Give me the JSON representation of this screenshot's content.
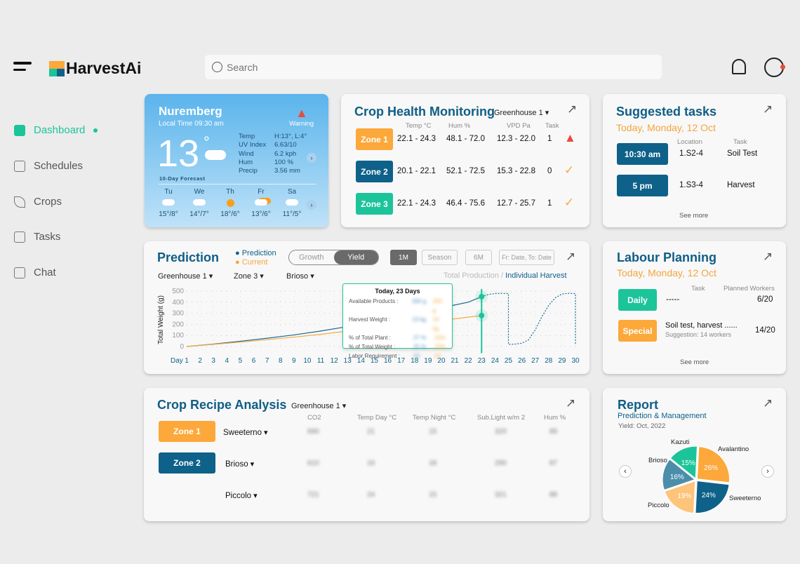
{
  "app": {
    "name": "HarvestAi",
    "search_placeholder": "Search"
  },
  "sidebar": {
    "items": [
      {
        "label": "Dashboard",
        "active": true
      },
      {
        "label": "Schedules"
      },
      {
        "label": "Crops"
      },
      {
        "label": "Tasks"
      },
      {
        "label": "Chat"
      }
    ]
  },
  "weather": {
    "city": "Nuremberg",
    "local_time": "Local Time 09:30 am",
    "warning": "Warning",
    "temp": "13",
    "deg": "°",
    "stats": [
      [
        "Temp",
        "H:13°, L:4°"
      ],
      [
        "UV Index",
        "6.63/10"
      ],
      [
        "Wind",
        "6.2 kph"
      ],
      [
        "Hum",
        "100 %"
      ],
      [
        "Precip",
        "3.56 mm"
      ]
    ],
    "forecast_label": "10-Day Forecast",
    "days": [
      {
        "d": "Tu",
        "t": "15°/8°",
        "icon": "cloud"
      },
      {
        "d": "We",
        "t": "14°/7°",
        "icon": "cloud"
      },
      {
        "d": "Th",
        "t": "18°/6°",
        "icon": "sun"
      },
      {
        "d": "Fr",
        "t": "13°/6°",
        "icon": "partly-cloudy"
      },
      {
        "d": "Sa",
        "t": "11°/5°",
        "icon": "rain"
      }
    ]
  },
  "crop_health": {
    "title": "Crop Health Monitoring",
    "greenhouse": "Greenhouse 1",
    "headers": [
      "Temp °C",
      "Hum %",
      "VPD Pa",
      "Task"
    ],
    "rows": [
      {
        "zone": "Zone 1",
        "temp": "22.1 - 24.3",
        "hum": "48.1 - 72.0",
        "vpd": "12.3 - 22.0",
        "task": "1",
        "status": "warning"
      },
      {
        "zone": "Zone 2",
        "temp": "20.1 - 22.1",
        "hum": "52.1 - 72.5",
        "vpd": "15.3 - 22.8",
        "task": "0",
        "status": "ok"
      },
      {
        "zone": "Zone 3",
        "temp": "22.1 - 24.3",
        "hum": "46.4 - 75.6",
        "vpd": "12.7 - 25.7",
        "task": "1",
        "status": "ok"
      }
    ]
  },
  "suggested": {
    "title": "Suggested tasks",
    "date": "Today, Monday, 12 Oct",
    "headers": [
      "Location",
      "Task"
    ],
    "rows": [
      {
        "time": "10:30 am",
        "loc": "1.S2-4",
        "task": "Soil Test"
      },
      {
        "time": "5 pm",
        "loc": "1.S3-4",
        "task": "Harvest"
      }
    ],
    "see_more": "See more"
  },
  "prediction": {
    "title": "Prediction",
    "legend": [
      "Prediction",
      "Current"
    ],
    "toggle": [
      "Growth",
      "Yield"
    ],
    "ranges": [
      "1M",
      "Season",
      "6M",
      "Fr: Date, To: Date"
    ],
    "filters": [
      "Greenhouse 1",
      "Zone 3",
      "Brioso"
    ],
    "view": [
      "Total Production",
      "/",
      "Individual Harvest"
    ],
    "tooltip": {
      "title": "Today, 23 Days",
      "rows": [
        [
          "Available Products :",
          "300 g",
          "200 g"
        ],
        [
          "Harvest Weight :",
          "13 kg",
          "10 kg"
        ],
        [
          "% of Total Plant :",
          "27 %",
          "22%"
        ],
        [
          "% of Total Weight :",
          "25 %",
          "20%"
        ],
        [
          "Labor Requirement :",
          "10",
          "10"
        ]
      ]
    }
  },
  "chart_data": {
    "type": "line",
    "ylabel": "Total Weight (g)",
    "xlabel": "Day",
    "ylim": [
      0,
      500
    ],
    "yticks": [
      "0",
      "100",
      "200",
      "300",
      "400",
      "500"
    ],
    "x": [
      1,
      2,
      3,
      4,
      5,
      6,
      7,
      8,
      9,
      10,
      11,
      12,
      13,
      14,
      15,
      16,
      17,
      18,
      19,
      20,
      21,
      22,
      23,
      24,
      25,
      26,
      27,
      28,
      29,
      30
    ],
    "series": [
      {
        "name": "Prediction",
        "color": "#1b6b93",
        "x": [
          1,
          3,
          5,
          7,
          9,
          11,
          13,
          15,
          17,
          19,
          21,
          22,
          23
        ],
        "values": [
          0,
          22,
          48,
          75,
          105,
          140,
          180,
          225,
          275,
          325,
          375,
          400,
          450
        ]
      },
      {
        "name": "Prediction (forecast)",
        "color": "#1b6b93",
        "dashed": true,
        "x": [
          23,
          23.5,
          24,
          24.5,
          25,
          25,
          25.5,
          26,
          26.5,
          27,
          27.5,
          28,
          28.5,
          29,
          29.5,
          30,
          30
        ],
        "values": [
          450,
          470,
          478,
          480,
          478,
          20,
          22,
          30,
          60,
          150,
          270,
          370,
          440,
          475,
          480,
          478,
          20
        ]
      },
      {
        "name": "Current",
        "color": "#f7a940",
        "x": [
          1,
          3,
          5,
          7,
          9,
          11,
          13,
          15,
          17,
          19,
          21,
          22,
          23
        ],
        "values": [
          0,
          20,
          40,
          62,
          85,
          110,
          140,
          170,
          200,
          225,
          250,
          265,
          280
        ]
      }
    ],
    "marker_day": 23
  },
  "labour": {
    "title": "Labour Planning",
    "date": "Today, Monday, 12 Oct",
    "headers": [
      "Task",
      "Planned Workers"
    ],
    "rows": [
      {
        "type": "Daily",
        "task": "-----",
        "workers": "6/20"
      },
      {
        "type": "Special",
        "task": "Soil test, harvest ......",
        "suggestion": "Suggestion: 14 workers",
        "workers": "14/20"
      }
    ],
    "see_more": "See more"
  },
  "recipe": {
    "title": "Crop Recipe Analysis",
    "greenhouse": "Greenhouse 1",
    "headers": [
      "CO2",
      "Temp Day °C",
      "Temp Night °C",
      "Sub.Light  w/m 2",
      "Hum %"
    ],
    "zones": [
      "Zone 1",
      "Zone 2"
    ],
    "rows": [
      {
        "crop": "Sweeterno",
        "v": [
          "690",
          "21",
          "15",
          "320",
          "89"
        ]
      },
      {
        "crop": "Brioso",
        "v": [
          "610",
          "16",
          "18",
          "290",
          "87"
        ]
      },
      {
        "crop": "Piccolo",
        "v": [
          "721",
          "24",
          "15",
          "321",
          "88"
        ]
      }
    ]
  },
  "report": {
    "title": "Report",
    "subtitle": "Prediction & Management",
    "yield": "Yield: Oct, 2022",
    "pie": [
      {
        "name": "Avalantino",
        "pct": 26,
        "color": "#fca83a"
      },
      {
        "name": "Sweeterno",
        "pct": 24,
        "color": "#0e6189"
      },
      {
        "name": "Piccolo",
        "pct": 19,
        "color": "#fdc47a"
      },
      {
        "name": "Brioso",
        "pct": 16,
        "color": "#4b8eaa"
      },
      {
        "name": "Kazuti",
        "pct": 15,
        "color": "#1cc49a"
      }
    ]
  }
}
